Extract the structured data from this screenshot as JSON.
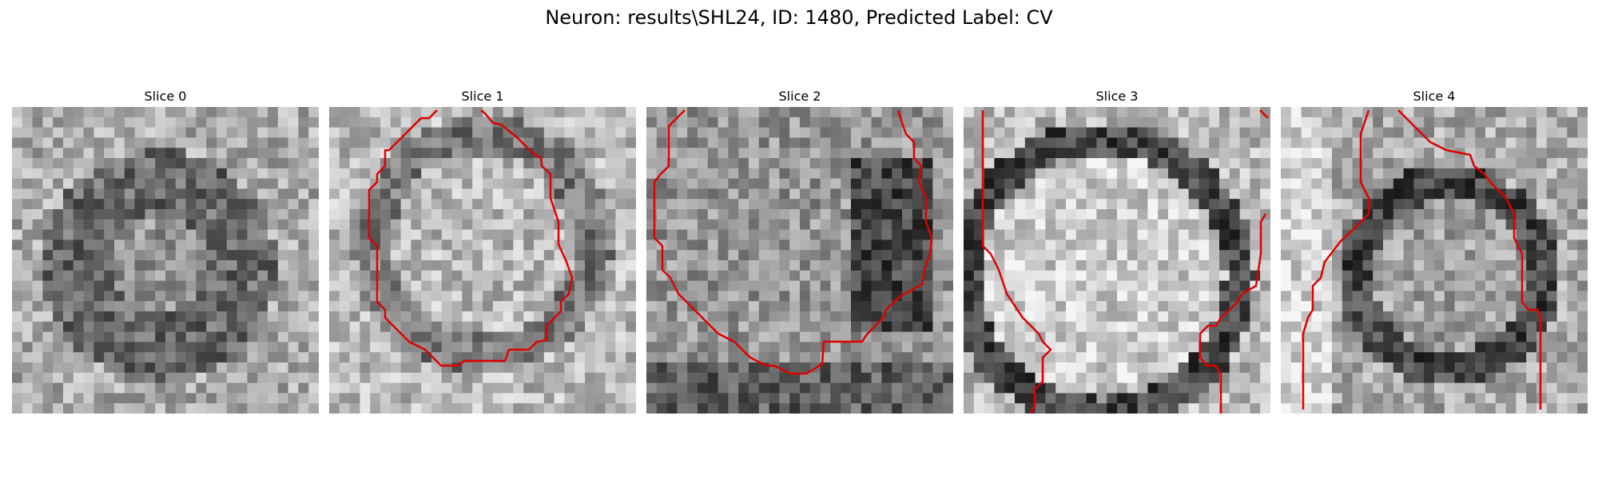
{
  "figure": {
    "title": "Neuron: results\\SHL24, ID: 1480, Predicted Label: CV"
  },
  "panels": [
    {
      "title": "Slice 0"
    },
    {
      "title": "Slice 1"
    },
    {
      "title": "Slice 2"
    },
    {
      "title": "Slice 3"
    },
    {
      "title": "Slice 4"
    }
  ],
  "colors": {
    "contour": "#e00000"
  }
}
